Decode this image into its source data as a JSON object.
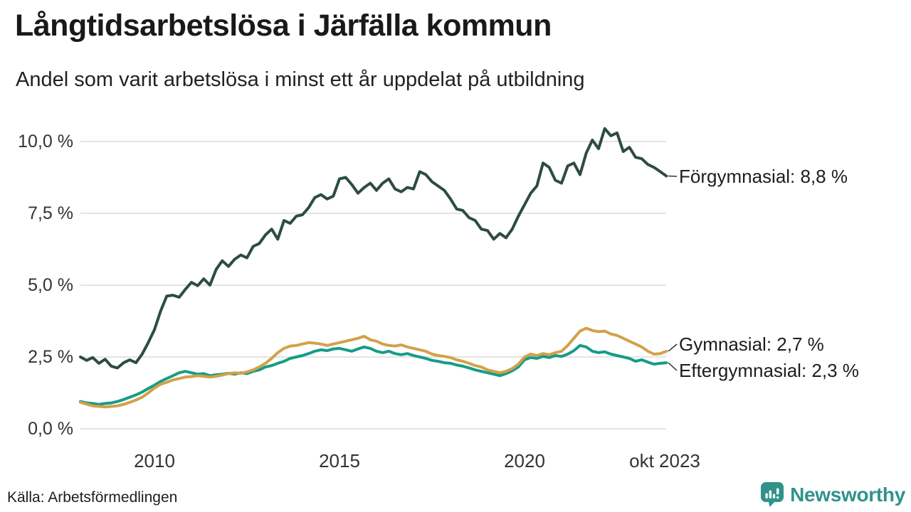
{
  "header": {
    "title": "Långtidsarbetslösa i Järfälla kommun",
    "subtitle": "Andel som varit arbetslösa i minst ett år uppdelat på utbildning"
  },
  "chart_data": {
    "type": "line",
    "title": "Långtidsarbetslösa i Järfälla kommun",
    "subtitle": "Andel som varit arbetslösa i minst ett år uppdelat på utbildning",
    "unit": "%",
    "x_start": 2008.0,
    "x_step": 0.1666667,
    "xlim": [
      2008.0,
      2023.833
    ],
    "ylim": [
      0,
      10.7
    ],
    "grid": true,
    "gridline_color": "#e4e4e4",
    "legend_position": "right-end-labels",
    "y_ticks": [
      {
        "label": "10,0 %",
        "value": 10.0
      },
      {
        "label": "7,5 %",
        "value": 7.5
      },
      {
        "label": "5,0 %",
        "value": 5.0
      },
      {
        "label": "2,5 %",
        "value": 2.5
      },
      {
        "label": "0,0 %",
        "value": 0.0
      }
    ],
    "x_ticks": [
      {
        "label": "2010",
        "value": 2010
      },
      {
        "label": "2015",
        "value": 2015
      },
      {
        "label": "2020",
        "value": 2020
      },
      {
        "label": "okt 2023",
        "value": 2023.79
      }
    ],
    "series": [
      {
        "name": "Förgymnasial",
        "end_label": "Förgymnasial: 8,8 %",
        "last_value": 8.8,
        "color": "#2d4c43",
        "values": [
          2.5,
          2.38,
          2.48,
          2.28,
          2.42,
          2.18,
          2.12,
          2.3,
          2.4,
          2.3,
          2.6,
          3.0,
          3.45,
          4.1,
          4.62,
          4.65,
          4.58,
          4.85,
          5.1,
          4.98,
          5.22,
          5.0,
          5.55,
          5.85,
          5.65,
          5.9,
          6.05,
          5.95,
          6.35,
          6.45,
          6.75,
          6.95,
          6.6,
          7.25,
          7.15,
          7.4,
          7.45,
          7.7,
          8.05,
          8.15,
          8.0,
          8.1,
          8.7,
          8.75,
          8.5,
          8.2,
          8.4,
          8.55,
          8.3,
          8.55,
          8.7,
          8.35,
          8.25,
          8.4,
          8.35,
          8.95,
          8.85,
          8.6,
          8.45,
          8.3,
          8.0,
          7.65,
          7.6,
          7.35,
          7.25,
          6.95,
          6.9,
          6.6,
          6.8,
          6.65,
          6.95,
          7.4,
          7.8,
          8.2,
          8.45,
          9.25,
          9.1,
          8.65,
          8.55,
          9.15,
          9.25,
          8.85,
          9.6,
          10.05,
          9.75,
          10.45,
          10.2,
          10.3,
          9.65,
          9.8,
          9.45,
          9.4,
          9.2,
          9.1,
          8.95,
          8.8
        ]
      },
      {
        "name": "Gymnasial",
        "end_label": "Gymnasial: 2,7 %",
        "last_value": 2.7,
        "color": "#d2a14a",
        "values": [
          0.92,
          0.86,
          0.8,
          0.78,
          0.76,
          0.78,
          0.8,
          0.85,
          0.92,
          1.0,
          1.1,
          1.25,
          1.42,
          1.55,
          1.62,
          1.7,
          1.75,
          1.8,
          1.82,
          1.85,
          1.83,
          1.8,
          1.83,
          1.87,
          1.92,
          1.95,
          1.93,
          1.98,
          2.05,
          2.15,
          2.28,
          2.45,
          2.65,
          2.8,
          2.88,
          2.9,
          2.95,
          3.0,
          2.98,
          2.95,
          2.9,
          2.95,
          3.0,
          3.05,
          3.1,
          3.15,
          3.22,
          3.1,
          3.05,
          2.95,
          2.9,
          2.88,
          2.92,
          2.85,
          2.8,
          2.75,
          2.7,
          2.6,
          2.55,
          2.52,
          2.48,
          2.4,
          2.35,
          2.28,
          2.2,
          2.15,
          2.05,
          2.0,
          1.95,
          2.0,
          2.1,
          2.25,
          2.5,
          2.6,
          2.55,
          2.62,
          2.58,
          2.65,
          2.7,
          2.9,
          3.15,
          3.4,
          3.5,
          3.42,
          3.38,
          3.4,
          3.3,
          3.25,
          3.15,
          3.05,
          2.95,
          2.85,
          2.7,
          2.6,
          2.62,
          2.7
        ]
      },
      {
        "name": "Eftergymnasial",
        "end_label": "Eftergymnasial: 2,3 %",
        "last_value": 2.3,
        "color": "#169c87",
        "values": [
          0.95,
          0.9,
          0.88,
          0.85,
          0.88,
          0.9,
          0.95,
          1.02,
          1.1,
          1.18,
          1.28,
          1.4,
          1.52,
          1.65,
          1.75,
          1.85,
          1.95,
          2.0,
          1.95,
          1.9,
          1.92,
          1.85,
          1.88,
          1.9,
          1.93,
          1.9,
          1.95,
          1.92,
          2.0,
          2.05,
          2.15,
          2.2,
          2.28,
          2.35,
          2.45,
          2.5,
          2.55,
          2.62,
          2.7,
          2.75,
          2.72,
          2.78,
          2.8,
          2.75,
          2.7,
          2.78,
          2.85,
          2.8,
          2.7,
          2.65,
          2.7,
          2.62,
          2.58,
          2.62,
          2.55,
          2.5,
          2.45,
          2.38,
          2.35,
          2.3,
          2.28,
          2.22,
          2.18,
          2.12,
          2.05,
          2.0,
          1.95,
          1.9,
          1.85,
          1.92,
          2.02,
          2.15,
          2.4,
          2.48,
          2.45,
          2.52,
          2.48,
          2.55,
          2.52,
          2.6,
          2.72,
          2.9,
          2.85,
          2.7,
          2.65,
          2.68,
          2.6,
          2.55,
          2.5,
          2.45,
          2.35,
          2.4,
          2.32,
          2.25,
          2.28,
          2.3
        ]
      }
    ]
  },
  "footer": {
    "source": "Källa: Arbetsförmedlingen",
    "brand": "Newsworthy",
    "brand_color": "#2f938a"
  }
}
